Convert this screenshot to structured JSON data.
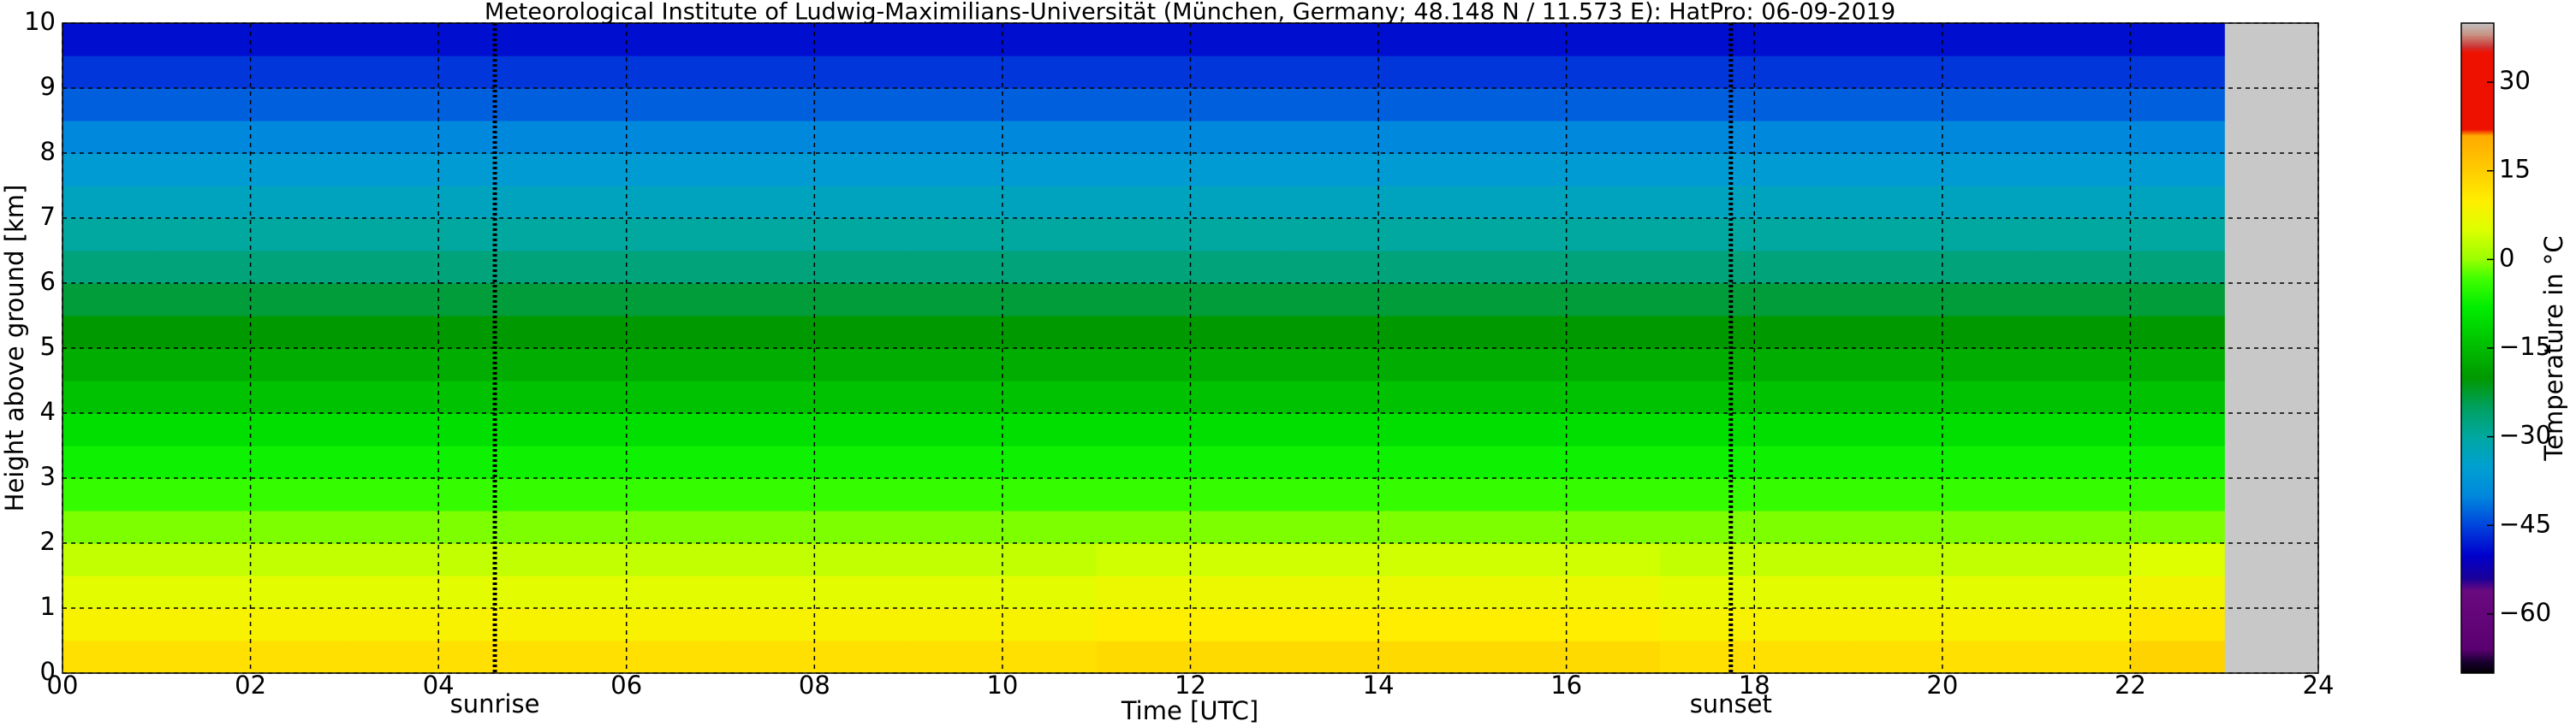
{
  "chart_data": {
    "type": "heatmap",
    "title": "Meteorological Institute of Ludwig-Maximilians-Universität (München, Germany; 48.148 N / 11.573 E):    HatPro: 06-09-2019",
    "x_label": "Time [UTC]",
    "y_label": "Height above ground [km]",
    "colorbar_label": "Temperature in °C",
    "xbins": [
      0,
      1,
      2,
      3,
      4,
      5,
      6,
      7,
      8,
      9,
      10,
      11,
      12,
      13,
      14,
      15,
      16,
      17,
      18,
      19,
      20,
      21,
      22,
      23
    ],
    "ybins": [
      0,
      0.5,
      1,
      1.5,
      2,
      2.5,
      3,
      3.5,
      4,
      4.5,
      5,
      5.5,
      6,
      6.5,
      7,
      7.5,
      8,
      8.5,
      9,
      9.5,
      10
    ],
    "z": [
      [
        12,
        12,
        12,
        12,
        12,
        12,
        12,
        12,
        12,
        12,
        12,
        13,
        13,
        13,
        13,
        13,
        13,
        12,
        12,
        12,
        12,
        12,
        14
      ],
      [
        9,
        9,
        9,
        9,
        9,
        9,
        9,
        9,
        9,
        9,
        9,
        10,
        10,
        10,
        10,
        10,
        10,
        9,
        9,
        9,
        9,
        9,
        11
      ],
      [
        6,
        6,
        6,
        6,
        6,
        6,
        6,
        6,
        6,
        6,
        6,
        7,
        7,
        7,
        7,
        7,
        7,
        6,
        6,
        6,
        6,
        6,
        8
      ],
      [
        3,
        3,
        3,
        3,
        3,
        3,
        3,
        3,
        3,
        3,
        3,
        4,
        4,
        4,
        4,
        4,
        4,
        3,
        3,
        3,
        3,
        3,
        5
      ],
      [
        -1,
        -1,
        -1,
        -1,
        -1,
        -1,
        -1,
        -1,
        -1,
        -1,
        -1,
        -1,
        -1,
        -1,
        -1,
        -1,
        -1,
        -1,
        -1,
        -1,
        -1,
        -1,
        -1
      ],
      [
        -4,
        -4,
        -4,
        -4,
        -4,
        -4,
        -4,
        -4,
        -4,
        -4,
        -4,
        -4,
        -4,
        -4,
        -4,
        -4,
        -4,
        -4,
        -4,
        -4,
        -4,
        -4,
        -4
      ],
      [
        -7,
        -7,
        -7,
        -7,
        -7,
        -7,
        -7,
        -7,
        -7,
        -7,
        -7,
        -7,
        -7,
        -7,
        -7,
        -7,
        -7,
        -7,
        -7,
        -7,
        -7,
        -7,
        -7
      ],
      [
        -10,
        -10,
        -10,
        -10,
        -10,
        -10,
        -10,
        -10,
        -10,
        -10,
        -10,
        -10,
        -10,
        -10,
        -10,
        -10,
        -10,
        -10,
        -10,
        -10,
        -10,
        -10,
        -10
      ],
      [
        -14,
        -14,
        -14,
        -14,
        -14,
        -14,
        -14,
        -14,
        -14,
        -14,
        -14,
        -14,
        -14,
        -14,
        -14,
        -14,
        -14,
        -14,
        -14,
        -14,
        -14,
        -14,
        -14
      ],
      [
        -17,
        -17,
        -17,
        -17,
        -17,
        -17,
        -17,
        -17,
        -17,
        -17,
        -17,
        -17,
        -17,
        -17,
        -17,
        -17,
        -17,
        -17,
        -17,
        -17,
        -17,
        -17,
        -17
      ],
      [
        -20,
        -20,
        -20,
        -20,
        -20,
        -20,
        -20,
        -20,
        -20,
        -20,
        -20,
        -20,
        -20,
        -20,
        -20,
        -20,
        -20,
        -20,
        -20,
        -20,
        -20,
        -20,
        -20
      ],
      [
        -23,
        -23,
        -23,
        -23,
        -23,
        -23,
        -23,
        -23,
        -23,
        -23,
        -23,
        -23,
        -23,
        -23,
        -23,
        -23,
        -23,
        -23,
        -23,
        -23,
        -23,
        -23,
        -23
      ],
      [
        -27,
        -27,
        -27,
        -27,
        -27,
        -27,
        -27,
        -27,
        -27,
        -27,
        -27,
        -27,
        -27,
        -27,
        -27,
        -27,
        -27,
        -27,
        -27,
        -27,
        -27,
        -27,
        -27
      ],
      [
        -30,
        -30,
        -30,
        -30,
        -30,
        -30,
        -30,
        -30,
        -30,
        -30,
        -30,
        -30,
        -30,
        -30,
        -30,
        -30,
        -30,
        -30,
        -30,
        -30,
        -30,
        -30,
        -30
      ],
      [
        -33,
        -33,
        -33,
        -33,
        -33,
        -33,
        -33,
        -33,
        -33,
        -33,
        -33,
        -33,
        -33,
        -33,
        -33,
        -33,
        -33,
        -33,
        -33,
        -33,
        -33,
        -33,
        -33
      ],
      [
        -36,
        -36,
        -36,
        -36,
        -36,
        -36,
        -36,
        -36,
        -36,
        -36,
        -36,
        -36,
        -36,
        -36,
        -36,
        -36,
        -36,
        -36,
        -36,
        -36,
        -36,
        -36,
        -36
      ],
      [
        -40,
        -40,
        -40,
        -40,
        -40,
        -40,
        -40,
        -40,
        -40,
        -40,
        -40,
        -40,
        -40,
        -40,
        -40,
        -40,
        -40,
        -40,
        -40,
        -40,
        -40,
        -40,
        -40
      ],
      [
        -43,
        -43,
        -43,
        -43,
        -43,
        -43,
        -43,
        -43,
        -43,
        -43,
        -43,
        -43,
        -43,
        -43,
        -43,
        -43,
        -43,
        -43,
        -43,
        -43,
        -43,
        -43,
        -43
      ],
      [
        -46,
        -46,
        -46,
        -46,
        -46,
        -46,
        -46,
        -46,
        -46,
        -46,
        -46,
        -46,
        -46,
        -46,
        -46,
        -46,
        -46,
        -46,
        -46,
        -46,
        -46,
        -46,
        -46
      ],
      [
        -49,
        -49,
        -49,
        -49,
        -49,
        -49,
        -49,
        -49,
        -49,
        -49,
        -49,
        -49,
        -49,
        -49,
        -49,
        -49,
        -49,
        -49,
        -49,
        -49,
        -49,
        -49,
        -49
      ]
    ],
    "xlim": [
      0,
      24
    ],
    "ylim": [
      0,
      10
    ],
    "xticks": [
      {
        "value": 0,
        "label": "00"
      },
      {
        "value": 2,
        "label": "02"
      },
      {
        "value": 4,
        "label": "04"
      },
      {
        "value": 6,
        "label": "06"
      },
      {
        "value": 8,
        "label": "08"
      },
      {
        "value": 10,
        "label": "10"
      },
      {
        "value": 12,
        "label": "12"
      },
      {
        "value": 14,
        "label": "14"
      },
      {
        "value": 16,
        "label": "16"
      },
      {
        "value": 18,
        "label": "18"
      },
      {
        "value": 20,
        "label": "20"
      },
      {
        "value": 22,
        "label": "22"
      },
      {
        "value": 24,
        "label": "24"
      }
    ],
    "yticks": [
      0,
      1,
      2,
      3,
      4,
      5,
      6,
      7,
      8,
      9,
      10
    ],
    "grid": true,
    "missing_color": "#c8c8c8",
    "annotations": [
      {
        "label": "sunrise",
        "x": 4.6
      },
      {
        "label": "sunset",
        "x": 17.75
      }
    ],
    "clim": [
      -70,
      40
    ],
    "cticks": [
      {
        "value": -60,
        "label": "−60"
      },
      {
        "value": -45,
        "label": "−45"
      },
      {
        "value": -30,
        "label": "−30"
      },
      {
        "value": -15,
        "label": "−15"
      },
      0,
      15,
      30
    ],
    "colormap": [
      {
        "value": -70,
        "color": "#000000"
      },
      {
        "value": -68,
        "color": "#1a0033"
      },
      {
        "value": -66,
        "color": "#5a0070"
      },
      {
        "value": -56,
        "color": "#6a0a80"
      },
      {
        "value": -54,
        "color": "#1a0099"
      },
      {
        "value": -50,
        "color": "#0000cc"
      },
      {
        "value": -45,
        "color": "#0044dd"
      },
      {
        "value": -40,
        "color": "#0088dd"
      },
      {
        "value": -35,
        "color": "#00a0d0"
      },
      {
        "value": -30,
        "color": "#00a8a0"
      },
      {
        "value": -25,
        "color": "#00a060"
      },
      {
        "value": -20,
        "color": "#009900"
      },
      {
        "value": -15,
        "color": "#00bb00"
      },
      {
        "value": -8,
        "color": "#00ee00"
      },
      {
        "value": -3,
        "color": "#44ff00"
      },
      {
        "value": 0,
        "color": "#99ff00"
      },
      {
        "value": 5,
        "color": "#ddff00"
      },
      {
        "value": 10,
        "color": "#ffee00"
      },
      {
        "value": 15,
        "color": "#ffcc00"
      },
      {
        "value": 21,
        "color": "#ffaa00"
      },
      {
        "value": 22,
        "color": "#ee1100"
      },
      {
        "value": 35,
        "color": "#ee1100"
      },
      {
        "value": 36,
        "color": "#cc3333"
      },
      {
        "value": 38,
        "color": "#c89080"
      },
      {
        "value": 40,
        "color": "#c0c0c0"
      }
    ]
  }
}
